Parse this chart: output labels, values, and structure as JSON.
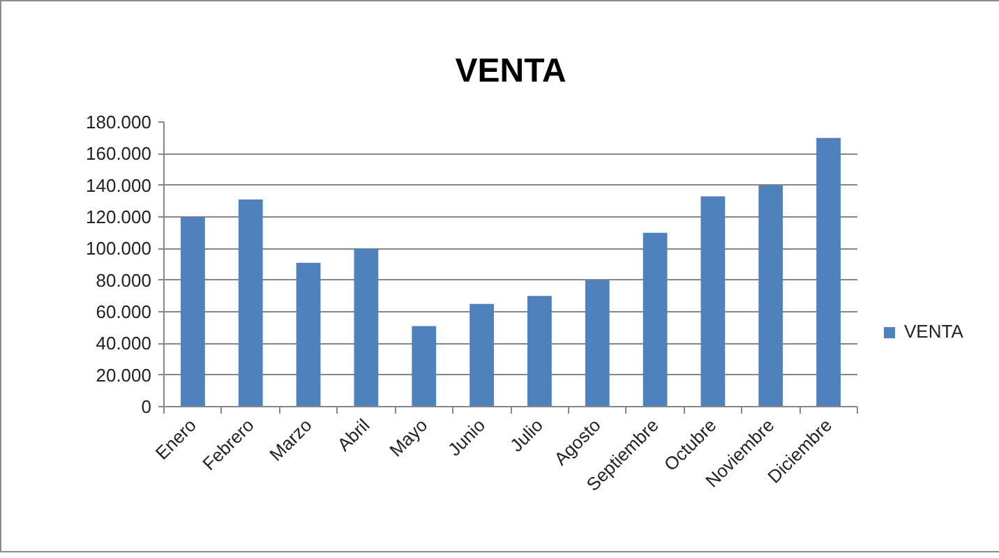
{
  "chart_data": {
    "type": "bar",
    "title": "VENTA",
    "categories": [
      "Enero",
      "Febrero",
      "Marzo",
      "Abril",
      "Mayo",
      "Junio",
      "Julio",
      "Agosto",
      "Septiembre",
      "Octubre",
      "Noviembre",
      "Diciembre"
    ],
    "series": [
      {
        "name": "VENTA",
        "color": "#4f81bd",
        "values": [
          120000,
          131000,
          91000,
          100000,
          51000,
          65000,
          70000,
          80000,
          110000,
          133000,
          140000,
          170000
        ]
      }
    ],
    "ylim": [
      0,
      180000
    ],
    "yticks": [
      0,
      {
        "value": 20000,
        "label": "20.000"
      },
      {
        "value": 40000,
        "label": "40.000"
      },
      {
        "value": 60000,
        "label": "60.000"
      },
      {
        "value": 80000,
        "label": "80.000"
      },
      {
        "value": 100000,
        "label": "100.000"
      },
      {
        "value": 120000,
        "label": "120.000"
      },
      {
        "value": 140000,
        "label": "140.000"
      },
      {
        "value": 160000,
        "label": "160.000"
      },
      {
        "value": 180000,
        "label": "180.000"
      }
    ],
    "grid": "y",
    "legend": "right"
  }
}
